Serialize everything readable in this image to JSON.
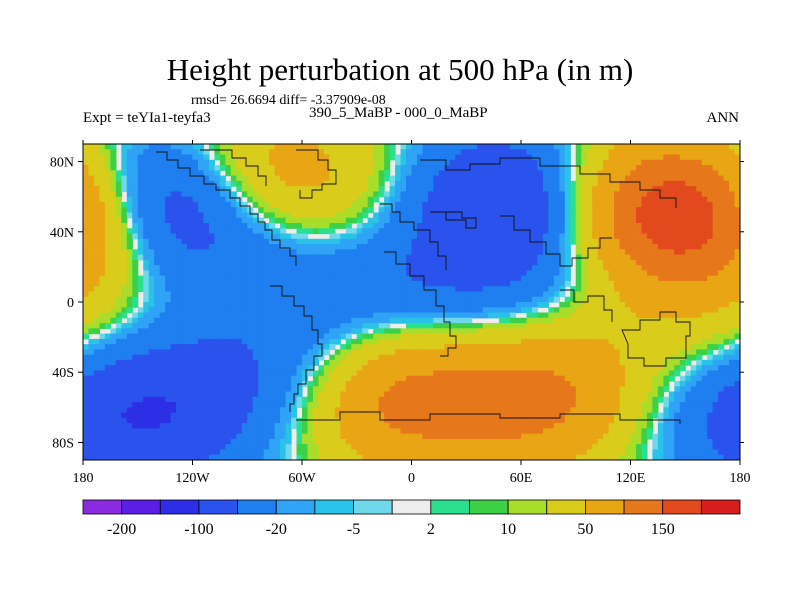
{
  "chart_data": {
    "type": "heatmap",
    "title": "Height perturbation at 500 hPa (in m)",
    "stats_line": "rmsd= 26.6694 diff= -3.37909e-08",
    "left_label": "Expt = teYIa1-teyfa3",
    "center_label": "390_5_MaBP - 000_0_MaBP",
    "right_label": "ANN",
    "x_ticks": [
      "180",
      "120W",
      "60W",
      "0",
      "60E",
      "120E",
      "180"
    ],
    "x_tick_values": [
      -180,
      -120,
      -60,
      0,
      60,
      120,
      180
    ],
    "y_ticks": [
      "80N",
      "40N",
      "0",
      "40S",
      "80S"
    ],
    "y_tick_values": [
      80,
      40,
      0,
      -40,
      -80
    ],
    "xlim": [
      -180,
      180
    ],
    "ylim": [
      -90,
      90
    ],
    "colorbar": {
      "levels": [
        -200,
        -150,
        -100,
        -50,
        -20,
        -10,
        -5,
        -2,
        2,
        5,
        10,
        20,
        50,
        100,
        150,
        200
      ],
      "labels": [
        "-200",
        "-100",
        "-20",
        "-5",
        "2",
        "10",
        "50",
        "150"
      ],
      "colors": [
        "#8a2be2",
        "#5a1ee6",
        "#2d2fe6",
        "#2a52ec",
        "#1f7ff0",
        "#2fa3f5",
        "#2ac3e8",
        "#6fd8ea",
        "#ededed",
        "#2ae08e",
        "#3cd046",
        "#a8dd2a",
        "#d9cc1a",
        "#e8a514",
        "#e6771a",
        "#e24a1e",
        "#d61e1e"
      ]
    },
    "anomalies": [
      {
        "lon": -135,
        "lat": 58,
        "value": -140
      },
      {
        "lon": -105,
        "lat": 70,
        "value": 40
      },
      {
        "lon": -70,
        "lat": 72,
        "value": 60
      },
      {
        "lon": -35,
        "lat": 45,
        "value": 25
      },
      {
        "lon": -170,
        "lat": 55,
        "value": 50
      },
      {
        "lon": -165,
        "lat": 30,
        "value": 15
      },
      {
        "lon": -75,
        "lat": 35,
        "value": -25
      },
      {
        "lon": -25,
        "lat": 20,
        "value": -25
      },
      {
        "lon": -100,
        "lat": 2,
        "value": -15
      },
      {
        "lon": 50,
        "lat": 55,
        "value": -120
      },
      {
        "lon": 135,
        "lat": 55,
        "value": 120
      },
      {
        "lon": 150,
        "lat": 40,
        "value": 60
      },
      {
        "lon": 40,
        "lat": 35,
        "value": 30
      },
      {
        "lon": 15,
        "lat": 8,
        "value": -30
      },
      {
        "lon": 70,
        "lat": 5,
        "value": -40
      },
      {
        "lon": 95,
        "lat": -15,
        "value": 20
      },
      {
        "lon": 150,
        "lat": -18,
        "value": 25
      },
      {
        "lon": -155,
        "lat": -20,
        "value": 12
      },
      {
        "lon": -10,
        "lat": -55,
        "value": 120
      },
      {
        "lon": 70,
        "lat": -55,
        "value": 110
      },
      {
        "lon": 140,
        "lat": -40,
        "value": -15
      },
      {
        "lon": -140,
        "lat": -60,
        "value": -90
      },
      {
        "lon": -60,
        "lat": -45,
        "value": -40
      },
      {
        "lon": 175,
        "lat": -72,
        "value": -30
      },
      {
        "lon": -30,
        "lat": -10,
        "value": -10
      }
    ]
  }
}
